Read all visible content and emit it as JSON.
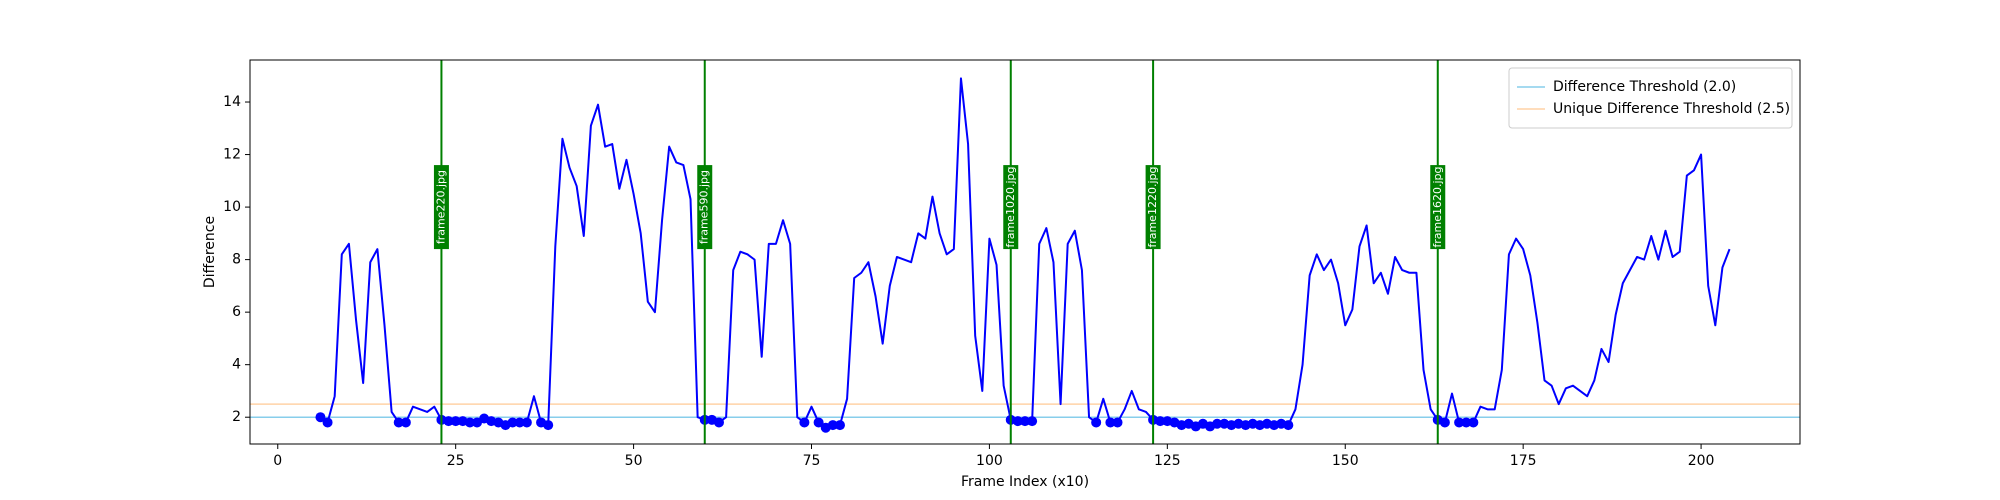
{
  "chart_data": {
    "type": "line",
    "xlabel": "Frame Index (x10)",
    "ylabel": "Difference",
    "xlim": [
      -3.9,
      213.9
    ],
    "ylim": [
      0.98,
      15.6
    ],
    "xticks": [
      0,
      25,
      50,
      75,
      100,
      125,
      150,
      175,
      200
    ],
    "yticks": [
      2,
      4,
      6,
      8,
      10,
      12,
      14
    ],
    "legend": "upper right",
    "series": [
      {
        "color": "blue",
        "x": [
          6,
          7,
          8,
          9,
          10,
          11,
          12,
          13,
          14,
          15,
          16,
          17,
          18,
          19,
          20,
          21,
          22,
          23,
          24,
          25,
          26,
          27,
          28,
          29,
          30,
          31,
          32,
          33,
          34,
          35,
          36,
          37,
          38,
          39,
          40,
          41,
          42,
          43,
          44,
          45,
          46,
          47,
          48,
          49,
          50,
          51,
          52,
          53,
          54,
          55,
          56,
          57,
          58,
          59,
          60,
          61,
          62,
          63,
          64,
          65,
          66,
          67,
          68,
          69,
          70,
          71,
          72,
          73,
          74,
          75,
          76,
          77,
          78,
          79,
          80,
          81,
          82,
          83,
          84,
          85,
          86,
          87,
          88,
          89,
          90,
          91,
          92,
          93,
          94,
          95,
          96,
          97,
          98,
          99,
          100,
          101,
          102,
          103,
          104,
          105,
          106,
          107,
          108,
          109,
          110,
          111,
          112,
          113,
          114,
          115,
          116,
          117,
          118,
          119,
          120,
          121,
          122,
          123,
          124,
          125,
          126,
          127,
          128,
          129,
          130,
          131,
          132,
          133,
          134,
          135,
          136,
          137,
          138,
          139,
          140,
          141,
          142,
          143,
          144,
          145,
          146,
          147,
          148,
          149,
          150,
          151,
          152,
          153,
          154,
          155,
          156,
          157,
          158,
          159,
          160,
          161,
          162,
          163,
          164,
          165,
          166,
          167,
          168,
          169,
          170,
          171,
          172,
          173,
          174,
          175,
          176,
          177,
          178,
          179,
          180,
          181,
          182,
          183,
          184,
          185,
          186,
          187,
          188,
          189,
          190,
          191,
          192,
          193,
          194,
          195,
          196,
          197,
          198,
          199,
          200,
          201,
          202,
          203,
          204
        ],
        "values": [
          2.0,
          1.8,
          2.8,
          8.2,
          8.6,
          5.7,
          3.3,
          7.9,
          8.4,
          5.5,
          2.2,
          1.8,
          1.8,
          2.4,
          2.3,
          2.2,
          2.4,
          1.9,
          1.85,
          1.85,
          1.85,
          1.8,
          1.8,
          1.95,
          1.85,
          1.8,
          1.7,
          1.8,
          1.8,
          1.8,
          2.8,
          1.8,
          1.7,
          8.5,
          12.6,
          11.5,
          10.8,
          8.9,
          13.1,
          13.9,
          12.3,
          12.4,
          10.7,
          11.8,
          10.5,
          9.0,
          6.4,
          6.0,
          9.5,
          12.3,
          11.7,
          11.6,
          10.3,
          2.0,
          1.9,
          1.9,
          1.8,
          2.0,
          7.6,
          8.3,
          8.2,
          8.0,
          4.3,
          8.6,
          8.6,
          9.5,
          8.6,
          2.0,
          1.8,
          2.4,
          1.8,
          1.6,
          1.7,
          1.7,
          2.7,
          7.3,
          7.5,
          7.9,
          6.6,
          4.8,
          7.0,
          8.1,
          8.0,
          7.9,
          9.0,
          8.8,
          10.4,
          9.0,
          8.2,
          8.4,
          14.9,
          12.4,
          5.1,
          3.0,
          8.8,
          7.8,
          3.2,
          1.9,
          1.85,
          1.85,
          1.85,
          8.6,
          9.2,
          7.9,
          2.5,
          8.6,
          9.1,
          7.6,
          2.0,
          1.8,
          2.7,
          1.8,
          1.8,
          2.3,
          3.0,
          2.3,
          2.2,
          1.9,
          1.85,
          1.85,
          1.8,
          1.7,
          1.75,
          1.65,
          1.75,
          1.65,
          1.75,
          1.75,
          1.7,
          1.75,
          1.7,
          1.75,
          1.7,
          1.75,
          1.7,
          1.75,
          1.7,
          2.3,
          4.0,
          7.4,
          8.2,
          7.6,
          8.0,
          7.1,
          5.5,
          6.1,
          8.5,
          9.3,
          7.1,
          7.5,
          6.7,
          8.1,
          7.6,
          7.5,
          7.5,
          3.8,
          2.3,
          1.9,
          1.8,
          2.9,
          1.8,
          1.8,
          1.8,
          2.4,
          2.3,
          2.3,
          3.8,
          8.2,
          8.8,
          8.4,
          7.4,
          5.6,
          3.4,
          3.2,
          2.5,
          3.1,
          3.2,
          3.0,
          2.8,
          3.4,
          4.6,
          4.1,
          5.9,
          7.1,
          7.6,
          8.1,
          8.0,
          8.9,
          8.0,
          9.1,
          8.1,
          8.3,
          11.2,
          11.4,
          12.0,
          7.0,
          5.5,
          7.7,
          8.4
        ]
      },
      {
        "color": "blue",
        "marker": "o",
        "x": [
          6,
          7,
          17,
          18,
          23,
          24,
          25,
          26,
          27,
          28,
          29,
          30,
          31,
          32,
          33,
          34,
          35,
          37,
          38,
          60,
          61,
          62,
          74,
          76,
          77,
          78,
          79,
          103,
          104,
          105,
          106,
          115,
          117,
          118,
          123,
          124,
          125,
          126,
          127,
          128,
          129,
          130,
          131,
          132,
          133,
          134,
          135,
          136,
          137,
          138,
          139,
          140,
          141,
          142,
          163,
          164,
          166,
          167,
          168
        ],
        "values": [
          2.0,
          1.8,
          1.8,
          1.8,
          1.9,
          1.85,
          1.85,
          1.85,
          1.8,
          1.8,
          1.95,
          1.85,
          1.8,
          1.7,
          1.8,
          1.8,
          1.8,
          1.8,
          1.7,
          1.9,
          1.9,
          1.8,
          1.8,
          1.8,
          1.6,
          1.7,
          1.7,
          1.9,
          1.85,
          1.85,
          1.85,
          1.8,
          1.8,
          1.8,
          1.9,
          1.85,
          1.85,
          1.8,
          1.7,
          1.75,
          1.65,
          1.75,
          1.65,
          1.75,
          1.75,
          1.7,
          1.75,
          1.7,
          1.75,
          1.7,
          1.75,
          1.7,
          1.75,
          1.7,
          1.9,
          1.8,
          1.8,
          1.8,
          1.8
        ]
      }
    ],
    "hlines": [
      {
        "y": 2.0,
        "color": "#87ceeb",
        "label": "Difference Threshold (2.0)"
      },
      {
        "y": 2.5,
        "color": "#ffd2a6",
        "label": "Unique Difference Threshold (2.5)"
      }
    ],
    "annotations": [
      {
        "x": 23,
        "y": 10,
        "label": "frame220.jpg",
        "color": "#008000"
      },
      {
        "x": 60,
        "y": 10,
        "label": "frame590.jpg",
        "color": "#008000"
      },
      {
        "x": 103,
        "y": 10,
        "label": "frame1020.jpg",
        "color": "#008000"
      },
      {
        "x": 123,
        "y": 10,
        "label": "frame1220.jpg",
        "color": "#008000"
      },
      {
        "x": 163,
        "y": 10,
        "label": "frame1620.jpg",
        "color": "#008000"
      }
    ]
  }
}
